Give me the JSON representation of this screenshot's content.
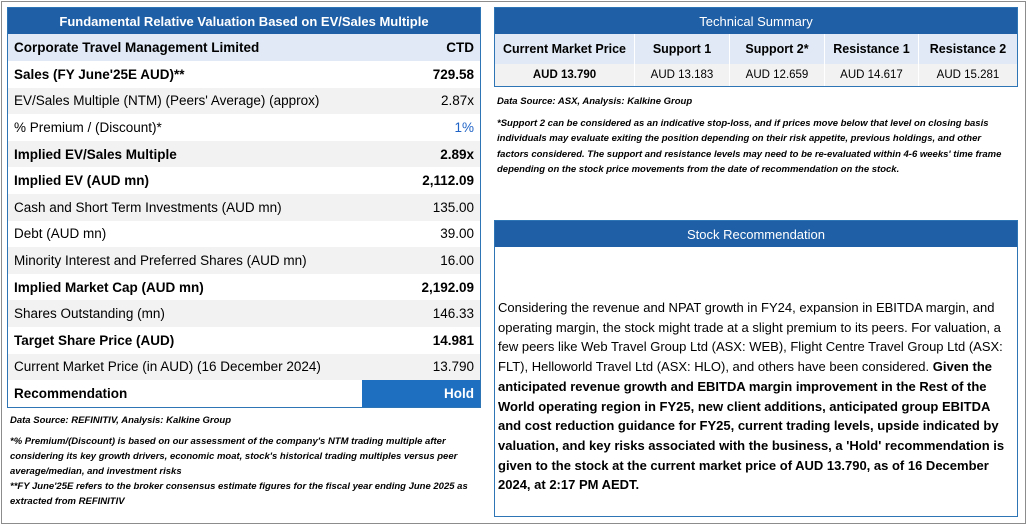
{
  "valuation": {
    "title": "Fundamental Relative Valuation Based on EV/Sales Multiple",
    "company": {
      "label": "Corporate Travel Management Limited",
      "value": "CTD"
    },
    "rows": [
      {
        "label": "Sales (FY June'25E AUD)**",
        "value": "729.58"
      },
      {
        "label": "EV/Sales Multiple (NTM)  (Peers' Average) (approx)",
        "value": "2.87x"
      },
      {
        "label": "% Premium / (Discount)*",
        "value": "1%"
      },
      {
        "label": "Implied EV/Sales Multiple",
        "value": "2.89x"
      },
      {
        "label": "Implied EV (AUD mn)",
        "value": "2,112.09"
      },
      {
        "label": "Cash and Short Term Investments (AUD mn)",
        "value": "135.00"
      },
      {
        "label": "Debt (AUD mn)",
        "value": "39.00"
      },
      {
        "label": "Minority Interest and Preferred Shares (AUD mn)",
        "value": "16.00"
      },
      {
        "label": "Implied Market Cap (AUD mn)",
        "value": "2,192.09"
      },
      {
        "label": "Shares Outstanding (mn)",
        "value": "146.33"
      },
      {
        "label": "Target Share Price (AUD)",
        "value": "14.981"
      },
      {
        "label": "Current Market Price (in AUD) (16 December 2024)",
        "value": "13.790"
      },
      {
        "label": "Recommendation",
        "value": "Hold"
      }
    ],
    "data_source": "Data Source: REFINITIV, Analysis: Kalkine Group",
    "note1": "*% Premium/(Discount) is based on our assessment of the company's NTM trading multiple after considering its key growth drivers, economic moat, stock's historical trading multiples versus peer average/median, and investment risks",
    "note2": "**FY June'25E refers to the broker consensus estimate figures for the fiscal year ending June 2025  as extracted from REFINITIV"
  },
  "technical": {
    "title": "Technical Summary",
    "headers": [
      "Current Market Price",
      "Support 1",
      "Support 2*",
      "Resistance 1",
      "Resistance 2"
    ],
    "values": [
      "AUD 13.790",
      "AUD 13.183",
      "AUD 12.659",
      "AUD 14.617",
      "AUD 15.281"
    ],
    "data_source": "Data Source: ASX, Analysis: Kalkine Group",
    "note": "*Support 2 can be considered as an indicative stop-loss, and if prices move below that level on closing basis individuals may evaluate exiting the position depending on their risk appetite, previous holdings, and other factors considered. The support and resistance levels may need to be re-evaluated within 4-6 weeks' time frame depending on the stock price movements from the date of recommendation on the stock."
  },
  "recommendation": {
    "title": "Stock Recommendation",
    "text_plain": "Considering the revenue and NPAT growth in FY24, expansion in EBITDA margin, and operating margin, the stock might trade at a slight premium to its peers. For valuation, a few peers like Web Travel Group Ltd (ASX: WEB), Flight Centre Travel Group Ltd (ASX: FLT), Helloworld Travel Ltd (ASX: HLO), and others have been considered. ",
    "text_bold": "Given the anticipated revenue growth and EBITDA margin improvement in the Rest of the World operating region in FY25, new client additions, anticipated group EBITDA and cost reduction guidance for FY25, current trading levels, upside indicated by valuation, and key risks associated with the business, a 'Hold' recommendation is given to the stock at the current market price of AUD 13.790, as of 16 December 2024, at 2:17 PM AEDT."
  }
}
